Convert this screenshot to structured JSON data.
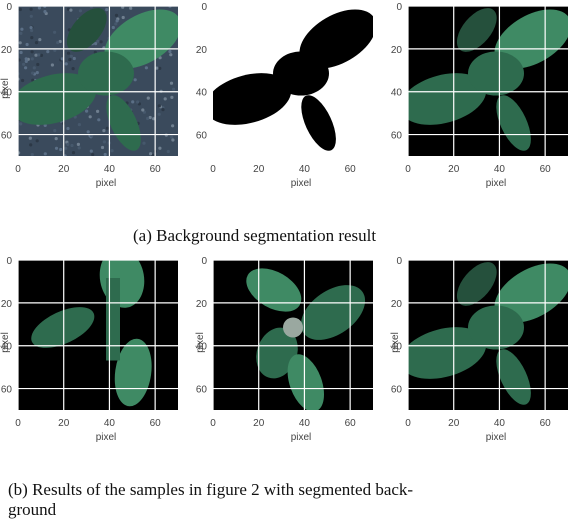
{
  "figure": {
    "panels": [
      {
        "id": "a1",
        "style": "soil",
        "ylabel": "pixel",
        "xlabel": "pixel",
        "yticks": [
          "0",
          "20",
          "40",
          "60"
        ],
        "xticks": [
          "0",
          "20",
          "40",
          "60"
        ]
      },
      {
        "id": "a2",
        "style": "mask",
        "ylabel": "",
        "xlabel": "pixel",
        "yticks": [
          "0",
          "20",
          "40",
          "60"
        ],
        "xticks": [
          "0",
          "20",
          "40",
          "60"
        ]
      },
      {
        "id": "a3",
        "style": "plant",
        "ylabel": "",
        "xlabel": "pixel",
        "yticks": [
          "0",
          "20",
          "40",
          "60"
        ],
        "xticks": [
          "0",
          "20",
          "40",
          "60"
        ]
      },
      {
        "id": "b1",
        "style": "plant2",
        "ylabel": "pixel",
        "xlabel": "pixel",
        "yticks": [
          "0",
          "20",
          "40",
          "60"
        ],
        "xticks": [
          "0",
          "20",
          "40",
          "60"
        ]
      },
      {
        "id": "b2",
        "style": "plant3",
        "ylabel": "pixel",
        "xlabel": "pixel",
        "yticks": [
          "0",
          "20",
          "40",
          "60"
        ],
        "xticks": [
          "0",
          "20",
          "40",
          "60"
        ]
      },
      {
        "id": "b3",
        "style": "plant",
        "ylabel": "pixel",
        "xlabel": "pixel",
        "yticks": [
          "0",
          "20",
          "40",
          "60"
        ],
        "xticks": [
          "0",
          "20",
          "40",
          "60"
        ]
      }
    ],
    "caption_a": "(a) Background segmentation result",
    "caption_b_line1": "(b) Results of the samples in figure 2 with segmented back-",
    "caption_b_line2": "ground"
  },
  "colors": {
    "leaf": "#2e6b4e",
    "leaf_light": "#3f8a64",
    "soil": "#3a4a5c",
    "mask": "#000000",
    "grid": "#ffffff"
  }
}
